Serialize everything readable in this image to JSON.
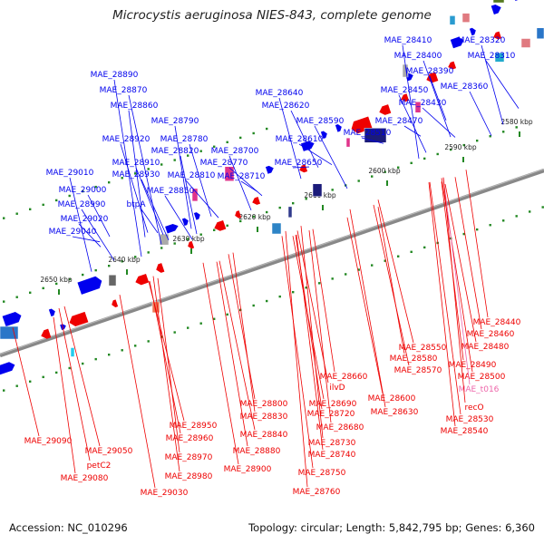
{
  "title": "Microcystis aeruginosa NIES-843, complete genome",
  "footer": {
    "accession": "Accession: NC_010296",
    "summary": "Topology: circular; Length: 5,842,795 bp; Genes: 6,360"
  },
  "colors": {
    "forward_gene": "#0000ee",
    "reverse_gene": "#ee0000",
    "trna_gene": "#ee66aa",
    "backbone": "#888888",
    "tick_green": "#228822"
  },
  "kbp_ticks": [
    "2580 kbp",
    "2590 kbp",
    "2600 kbp",
    "2610 kbp",
    "2620 kbp",
    "2630 kbp",
    "2640 kbp",
    "2650 kbp"
  ],
  "genes_top": [
    "MAE_28410",
    "MAE_28320",
    "MAE_28400",
    "MAE_28310",
    "MAE_28390",
    "MAE_28360",
    "MAE_28450",
    "MAE_28430",
    "MAE_28470",
    "MAE_28510",
    "MAE_28890",
    "MAE_28870",
    "MAE_28860",
    "MAE_28640",
    "MAE_28620",
    "MAE_28590",
    "MAE_28790",
    "MAE_28780",
    "MAE_28920",
    "MAE_28610",
    "MAE_28820",
    "MAE_28700",
    "MAE_28910",
    "MAE_28770",
    "MAE_28650",
    "MAE_29010",
    "MAE_28930",
    "MAE_28810",
    "MAE_28710",
    "MAE_29000",
    "MAE_28850",
    "MAE_28990",
    "btpA",
    "MAE_29020",
    "MAE_29040"
  ],
  "genes_bottom": [
    "MAE_28440",
    "MAE_28460",
    "MAE_28480",
    "MAE_28550",
    "MAE_28490",
    "MAE_28580",
    "MAE_28500",
    "MAE_28570",
    "MAE_28660",
    "MAE_t016",
    "ilvD",
    "MAE_28600",
    "recO",
    "MAE_28800",
    "MAE_28690",
    "MAE_28630",
    "MAE_28830",
    "MAE_28720",
    "MAE_28530",
    "MAE_28950",
    "MAE_28680",
    "MAE_28540",
    "MAE_28960",
    "MAE_28840",
    "MAE_28730",
    "MAE_29090",
    "MAE_28880",
    "MAE_29050",
    "MAE_28970",
    "MAE_28740",
    "petC2",
    "MAE_28900",
    "MAE_29080",
    "MAE_28980",
    "MAE_28750",
    "MAE_29030",
    "MAE_28760"
  ],
  "special_labels": [
    "MAE_t016"
  ]
}
